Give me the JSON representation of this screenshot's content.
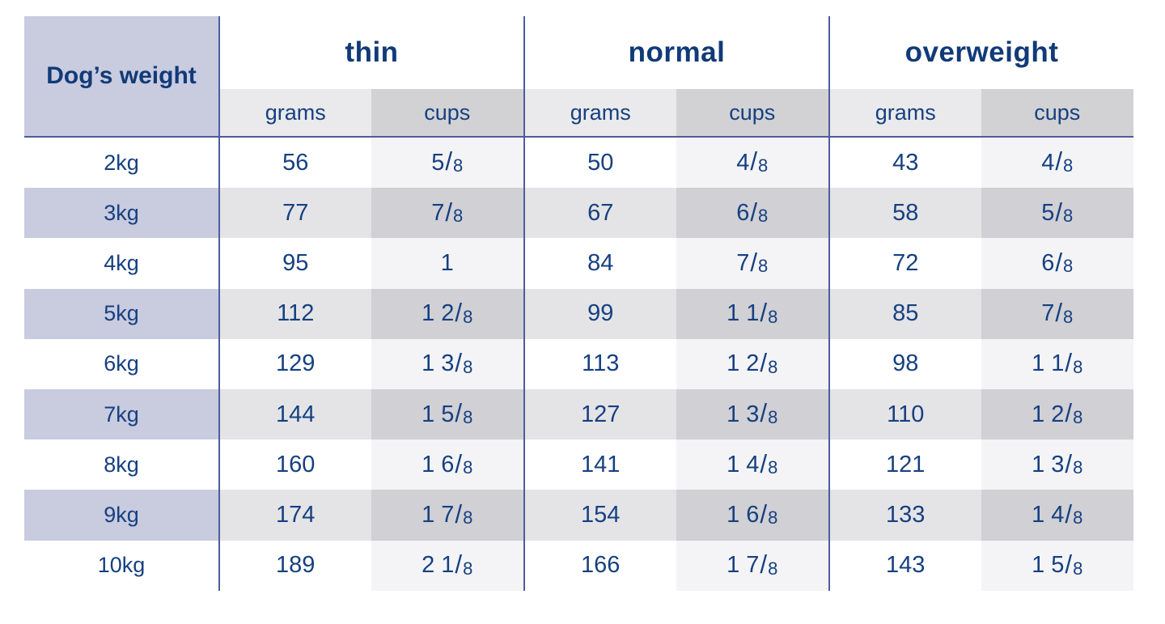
{
  "colors": {
    "navy_text": "#164080",
    "header_navy": "#113a78",
    "lavender": "#c9cbdf",
    "divider_line": "#4e5c9e",
    "subheader_grams_bg": "#eaeaec",
    "subheader_cups_bg": "#d2d2d5",
    "alt_row_grams_bg": "#e4e4e7",
    "alt_row_cups_bg": "#d0d0d5",
    "cups_col_bg": "#f4f4f6"
  },
  "table": {
    "corner_label": "Dog’s weight",
    "groups": [
      {
        "label": "thin"
      },
      {
        "label": "normal"
      },
      {
        "label": "overweight"
      }
    ],
    "subheader_labels": [
      "grams",
      "cups"
    ],
    "rows": [
      {
        "weight": "2kg",
        "thin_grams": "56",
        "thin_cups": "5/8",
        "normal_grams": "50",
        "normal_cups": "4/8",
        "over_grams": "43",
        "over_cups": "4/8"
      },
      {
        "weight": "3kg",
        "thin_grams": "77",
        "thin_cups": "7/8",
        "normal_grams": "67",
        "normal_cups": "6/8",
        "over_grams": "58",
        "over_cups": "5/8"
      },
      {
        "weight": "4kg",
        "thin_grams": "95",
        "thin_cups": "1",
        "normal_grams": "84",
        "normal_cups": "7/8",
        "over_grams": "72",
        "over_cups": "6/8"
      },
      {
        "weight": "5kg",
        "thin_grams": "112",
        "thin_cups": "1 2/8",
        "normal_grams": "99",
        "normal_cups": "1 1/8",
        "over_grams": "85",
        "over_cups": "7/8"
      },
      {
        "weight": "6kg",
        "thin_grams": "129",
        "thin_cups": "1 3/8",
        "normal_grams": "113",
        "normal_cups": "1 2/8",
        "over_grams": "98",
        "over_cups": "1 1/8"
      },
      {
        "weight": "7kg",
        "thin_grams": "144",
        "thin_cups": "1 5/8",
        "normal_grams": "127",
        "normal_cups": "1 3/8",
        "over_grams": "110",
        "over_cups": "1 2/8"
      },
      {
        "weight": "8kg",
        "thin_grams": "160",
        "thin_cups": "1 6/8",
        "normal_grams": "141",
        "normal_cups": "1 4/8",
        "over_grams": "121",
        "over_cups": "1 3/8"
      },
      {
        "weight": "9kg",
        "thin_grams": "174",
        "thin_cups": "1 7/8",
        "normal_grams": "154",
        "normal_cups": "1 6/8",
        "over_grams": "133",
        "over_cups": "1 4/8"
      },
      {
        "weight": "10kg",
        "thin_grams": "189",
        "thin_cups": "2 1/8",
        "normal_grams": "166",
        "normal_cups": "1 7/8",
        "over_grams": "143",
        "over_cups": "1 5/8"
      }
    ]
  },
  "chart_data": {
    "type": "table",
    "columns": [
      "Dog’s weight",
      "thin grams",
      "thin cups",
      "normal grams",
      "normal cups",
      "overweight grams",
      "overweight cups"
    ],
    "rows": [
      [
        "2kg",
        56,
        "5/8",
        50,
        "4/8",
        43,
        "4/8"
      ],
      [
        "3kg",
        77,
        "7/8",
        67,
        "6/8",
        58,
        "5/8"
      ],
      [
        "4kg",
        95,
        "1",
        84,
        "7/8",
        72,
        "6/8"
      ],
      [
        "5kg",
        112,
        "1 2/8",
        99,
        "1 1/8",
        85,
        "7/8"
      ],
      [
        "6kg",
        129,
        "1 3/8",
        113,
        "1 2/8",
        98,
        "1 1/8"
      ],
      [
        "7kg",
        144,
        "1 5/8",
        127,
        "1 3/8",
        110,
        "1 2/8"
      ],
      [
        "8kg",
        160,
        "1 6/8",
        141,
        "1 4/8",
        121,
        "1 3/8"
      ],
      [
        "9kg",
        174,
        "1 7/8",
        154,
        "1 6/8",
        133,
        "1 4/8"
      ],
      [
        "10kg",
        189,
        "2 1/8",
        166,
        "1 7/8",
        143,
        "1 5/8"
      ]
    ]
  }
}
